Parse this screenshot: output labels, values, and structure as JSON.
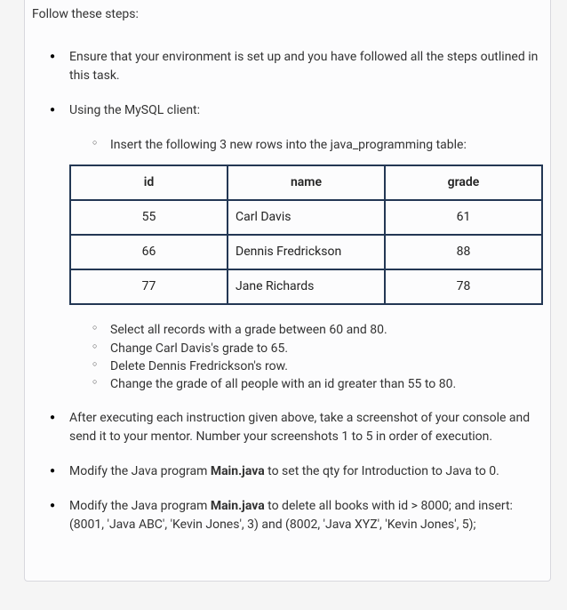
{
  "intro": "Follow these steps:",
  "items": [
    {
      "text": "Ensure that your environment is set up and you have followed all the steps outlined in this task."
    },
    {
      "text": "Using the MySQL client:",
      "sub_pre": [
        "Insert the following 3 new rows into the java_programming table:"
      ],
      "table": {
        "columns": [
          "id",
          "name",
          "grade"
        ],
        "rows": [
          [
            "55",
            "Carl Davis",
            "61"
          ],
          [
            "66",
            "Dennis Fredrickson",
            "88"
          ],
          [
            "77",
            "Jane Richards",
            "78"
          ]
        ],
        "border_color": "#233754",
        "header_bg": "#fcfcfd",
        "col_align": [
          "center",
          "left",
          "center"
        ]
      },
      "sub_post": [
        "Select all records with a grade between 60 and 80.",
        "Change Carl Davis's grade to 65.",
        "Delete Dennis Fredrickson's row.",
        "Change the grade of all people with an id greater than 55 to 80."
      ]
    },
    {
      "text": "After executing each instruction given above, take a screenshot of your console and send it to your mentor. Number your screenshots 1 to 5 in order of execution."
    },
    {
      "parts": [
        {
          "t": "Modify the Java program ",
          "b": false
        },
        {
          "t": "Main.java",
          "b": true
        },
        {
          "t": " to set the qty for Introduction to Java to 0.",
          "b": false
        }
      ]
    },
    {
      "parts": [
        {
          "t": "Modify the Java program  ",
          "b": false
        },
        {
          "t": "Main.java",
          "b": true
        },
        {
          "t": " to delete all books with id > 8000; and insert: (8001, 'Java ABC', 'Kevin Jones',  3) and (8002, 'Java XYZ', 'Kevin Jones', 5);",
          "b": false
        }
      ]
    }
  ],
  "colors": {
    "page_bg": "#fcfcfd",
    "border": "#d8d8de",
    "text": "#333333",
    "table_border": "#233754"
  },
  "typography": {
    "body_fontsize": 14
  }
}
